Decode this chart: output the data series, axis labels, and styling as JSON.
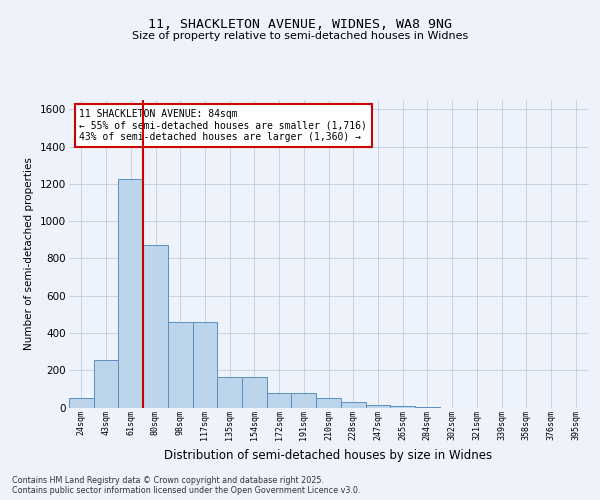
{
  "title1": "11, SHACKLETON AVENUE, WIDNES, WA8 9NG",
  "title2": "Size of property relative to semi-detached houses in Widnes",
  "xlabel": "Distribution of semi-detached houses by size in Widnes",
  "ylabel": "Number of semi-detached properties",
  "bins": [
    "24sqm",
    "43sqm",
    "61sqm",
    "80sqm",
    "98sqm",
    "117sqm",
    "135sqm",
    "154sqm",
    "172sqm",
    "191sqm",
    "210sqm",
    "228sqm",
    "247sqm",
    "265sqm",
    "284sqm",
    "302sqm",
    "321sqm",
    "339sqm",
    "358sqm",
    "376sqm",
    "395sqm"
  ],
  "values": [
    50,
    255,
    1225,
    870,
    460,
    460,
    163,
    163,
    80,
    80,
    50,
    30,
    15,
    10,
    5,
    0,
    0,
    0,
    0,
    0,
    0
  ],
  "bar_color": "#bdd5eb",
  "bar_edge_color": "#5a8fc0",
  "vline_x": 2.5,
  "vline_color": "#cc0000",
  "annotation_text": "11 SHACKLETON AVENUE: 84sqm\n← 55% of semi-detached houses are smaller (1,716)\n43% of semi-detached houses are larger (1,360) →",
  "annotation_box_color": "#ffffff",
  "annotation_box_edge": "#cc0000",
  "ylim": [
    0,
    1650
  ],
  "yticks": [
    0,
    200,
    400,
    600,
    800,
    1000,
    1200,
    1400,
    1600
  ],
  "footer_text": "Contains HM Land Registry data © Crown copyright and database right 2025.\nContains public sector information licensed under the Open Government Licence v3.0.",
  "background_color": "#eef2fa"
}
